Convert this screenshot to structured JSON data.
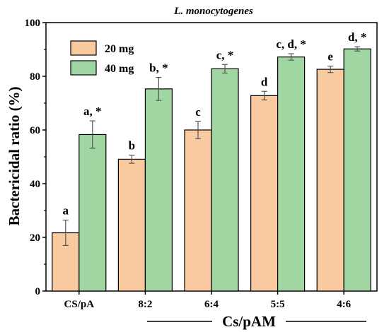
{
  "chart_data": {
    "type": "bar",
    "title": "L. monocytogenes",
    "xlabel": "Cs/pAM",
    "ylabel": "Bactericidal ratio (%)",
    "ylim": [
      0,
      100
    ],
    "yticks": [
      0,
      20,
      40,
      60,
      80,
      100
    ],
    "categories": [
      "CS/pA",
      "8:2",
      "6:4",
      "5:5",
      "4:6"
    ],
    "series": [
      {
        "name": "20 mg",
        "color": "#f9c9a0",
        "values": [
          21.7,
          49.1,
          60.0,
          72.8,
          82.6
        ],
        "errors": [
          4.7,
          1.5,
          3.2,
          1.6,
          1.2
        ],
        "labels": [
          "a",
          "b",
          "c",
          "d",
          "e"
        ]
      },
      {
        "name": "40 mg",
        "color": "#9fd6a2",
        "values": [
          58.3,
          75.3,
          82.8,
          87.2,
          90.2
        ],
        "errors": [
          5.1,
          4.3,
          1.6,
          1.2,
          0.8
        ],
        "labels": [
          "a, *",
          "b, *",
          "c, *",
          "c, d, *",
          "d, *"
        ]
      }
    ],
    "legend_position": "top-left",
    "grid": false
  }
}
